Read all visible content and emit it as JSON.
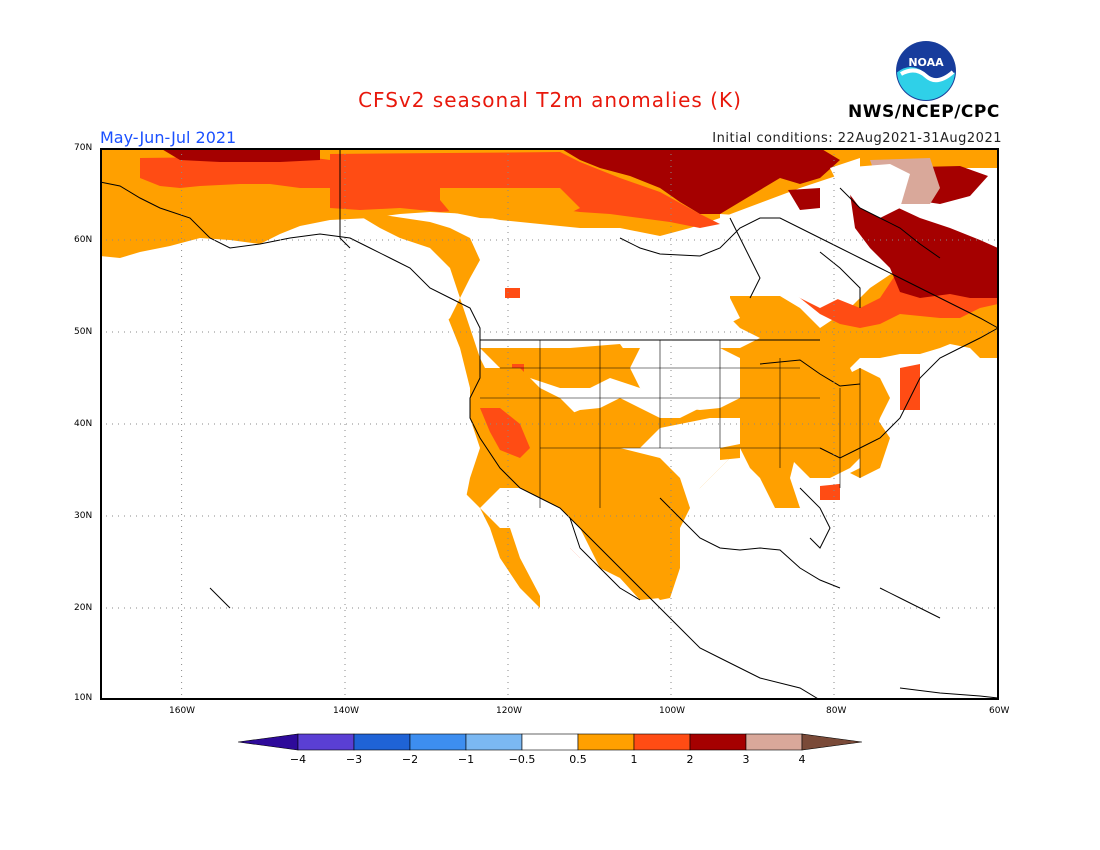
{
  "header": {
    "title": "CFSv2 seasonal T2m anomalies (K)",
    "period": "May-Jun-Jul 2021",
    "initial_conditions": "Initial conditions: 22Aug2021-31Aug2021",
    "agency": "NWS/NCEP/CPC",
    "logo_text": "NOAA",
    "logo_icon": "noaa-logo-icon"
  },
  "map": {
    "lat_labels": [
      "70N",
      "60N",
      "50N",
      "40N",
      "30N",
      "20N",
      "10N"
    ],
    "lon_labels": [
      "160W",
      "140W",
      "120W",
      "100W",
      "80W",
      "60W"
    ],
    "lon_range": [
      -170,
      -60
    ],
    "lat_range": [
      10,
      70
    ],
    "grid": "dotted"
  },
  "colorbar": {
    "ticks": [
      "−4",
      "−3",
      "−2",
      "−1",
      "−0.5",
      "0.5",
      "1",
      "2",
      "3",
      "4"
    ],
    "colors": [
      "#2e0a9a",
      "#5a3fd4",
      "#1f63d6",
      "#3d8ef0",
      "#7bb8f2",
      "#ffffff",
      "#ffa000",
      "#ff4c14",
      "#a50000",
      "#d9a89a",
      "#7a4a38"
    ]
  }
}
